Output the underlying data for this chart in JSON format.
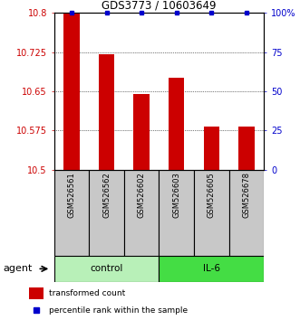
{
  "title": "GDS3773 / 10603649",
  "samples": [
    "GSM526561",
    "GSM526562",
    "GSM526602",
    "GSM526603",
    "GSM526605",
    "GSM526678"
  ],
  "red_values": [
    10.8,
    10.72,
    10.645,
    10.675,
    10.582,
    10.582
  ],
  "blue_values": [
    100,
    100,
    100,
    100,
    100,
    100
  ],
  "ylim_left": [
    10.5,
    10.8
  ],
  "ylim_right": [
    0,
    100
  ],
  "yticks_left": [
    10.5,
    10.575,
    10.65,
    10.725,
    10.8
  ],
  "yticks_right": [
    0,
    25,
    50,
    75,
    100
  ],
  "ytick_labels_left": [
    "10.5",
    "10.575",
    "10.65",
    "10.725",
    "10.8"
  ],
  "ytick_labels_right": [
    "0",
    "25",
    "50",
    "75",
    "100%"
  ],
  "control_color": "#b8f0b8",
  "il6_color": "#44dd44",
  "bar_color": "#cc0000",
  "dot_color": "#0000cc",
  "bar_width": 0.45,
  "sample_bg": "#c8c8c8",
  "agent_label": "agent",
  "legend_items": [
    "transformed count",
    "percentile rank within the sample"
  ],
  "legend_colors": [
    "#cc0000",
    "#0000cc"
  ],
  "background_color": "#ffffff",
  "label_color_left": "#cc0000",
  "label_color_right": "#0000cc"
}
